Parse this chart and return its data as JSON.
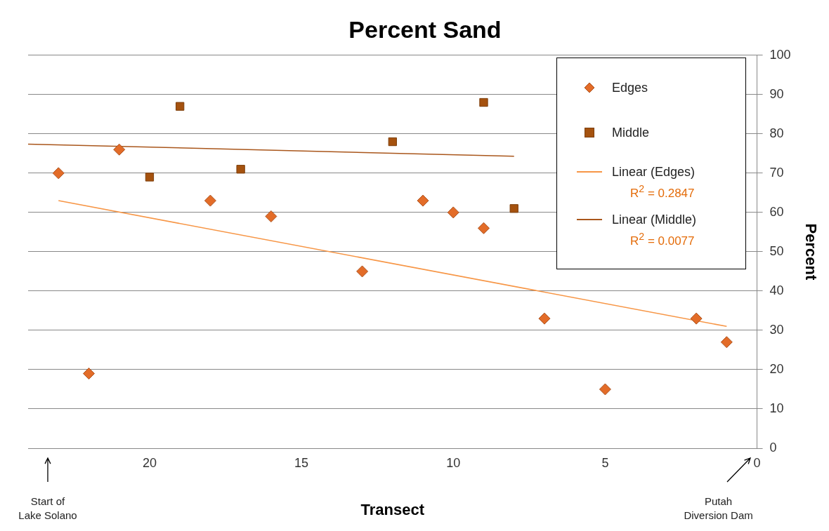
{
  "chart_data": {
    "type": "scatter",
    "title": "Percent Sand",
    "xlabel": "Transect",
    "ylabel": "Percent",
    "xlim": [
      24,
      0
    ],
    "xticks": [
      0,
      5,
      10,
      15,
      20
    ],
    "ylim": [
      0,
      100
    ],
    "yticks": [
      0,
      10,
      20,
      30,
      40,
      50,
      60,
      70,
      80,
      90,
      100
    ],
    "grid": "y",
    "legend": "top right",
    "series": [
      {
        "name": "Edges",
        "type": "scatter",
        "marker": "diamond",
        "color": "#e36c28",
        "x": [
          23,
          22,
          21,
          18,
          16,
          13,
          11,
          10,
          9,
          7,
          5,
          2,
          1
        ],
        "values": [
          70,
          19,
          76,
          63,
          59,
          45,
          63,
          60,
          56,
          33,
          15,
          33,
          27
        ]
      },
      {
        "name": "Middle",
        "type": "scatter",
        "marker": "square",
        "color": "#a5520f",
        "x": [
          20,
          19,
          17,
          12,
          9,
          8
        ],
        "values": [
          69,
          87,
          71,
          78,
          88,
          61
        ]
      },
      {
        "name": "Linear (Edges)",
        "type": "line",
        "marker": "none",
        "color": "#f79646",
        "x": [
          23,
          1
        ],
        "values": [
          63,
          31
        ]
      },
      {
        "name": "Linear (Middle)",
        "type": "line",
        "marker": "none",
        "color": "#a9561b",
        "x": [
          24,
          8
        ],
        "values": [
          77.4,
          74.3
        ]
      }
    ],
    "annotations": [
      "R$^{2}$ = 0.2847",
      "R$^{2}$ = 0.0077",
      "Start of\nLake Solano",
      "Putah\nDiversion Dam"
    ]
  }
}
